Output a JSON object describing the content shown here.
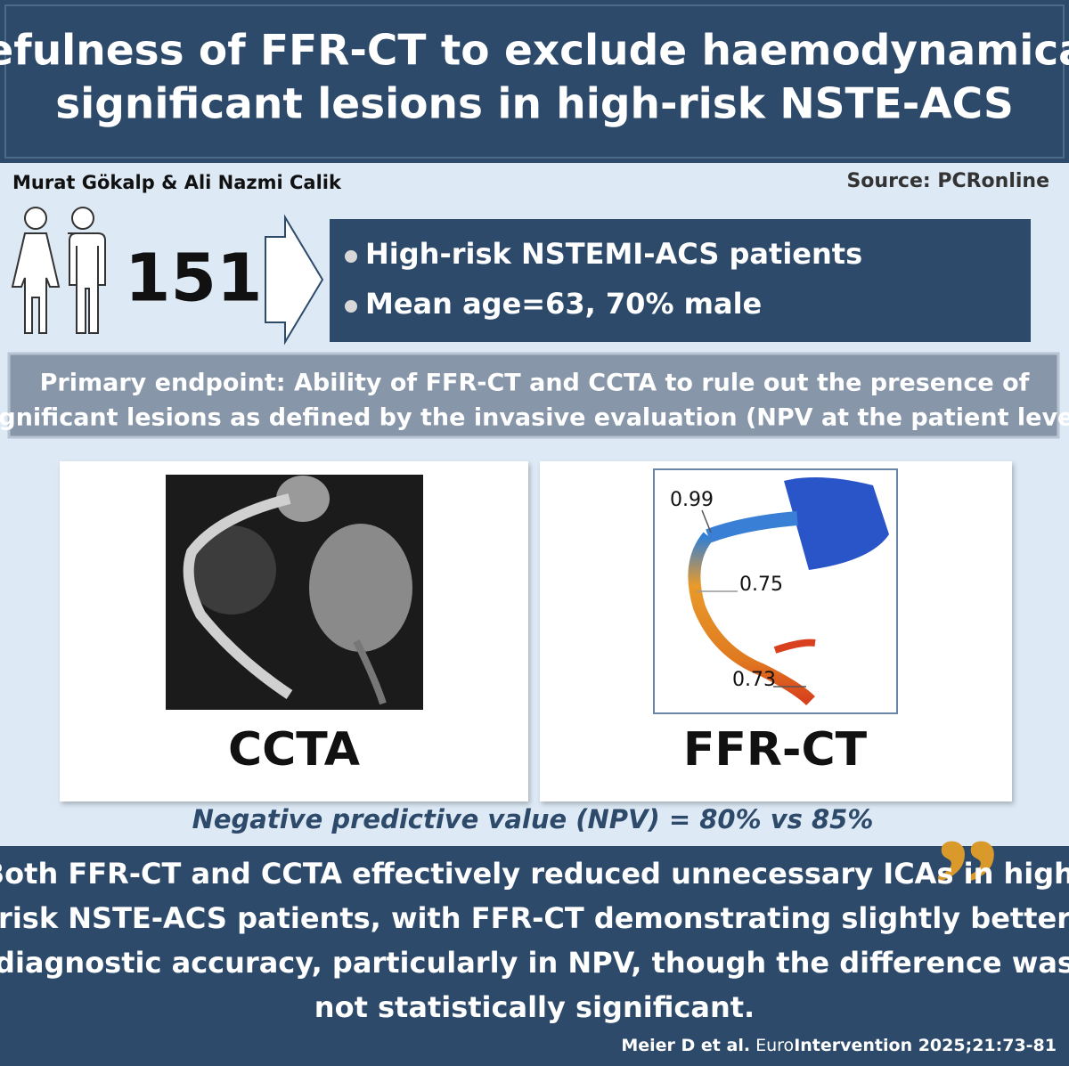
{
  "header": {
    "title_lines": [
      "Usefulness of FFR-CT to exclude haemodynamically",
      "significant lesions in high-risk NSTE-ACS"
    ]
  },
  "authors": "Murat Gökalp & Ali Nazmi Calik",
  "source": "Source: PCRonline",
  "population": {
    "count": 151,
    "bullets": [
      "High-risk NSTEMI-ACS patients",
      "Mean age=63, 70% male"
    ]
  },
  "endpoint_lines": [
    "Primary endpoint: Ability of FFR-CT and CCTA to rule out the presence of",
    "significant lesions as defined by the invasive evaluation (NPV at the patient level)"
  ],
  "panels": [
    {
      "label": "CCTA"
    },
    {
      "label": "FFR-CT",
      "annotations": [
        "0.99",
        "0.75",
        "0.73"
      ]
    }
  ],
  "npv": "Negative predictive value (NPV) = 80% vs  85%",
  "conclusion_lines": [
    "Both FFR-CT and CCTA effectively reduced unnecessary ICAs in high-",
    "risk NSTE-ACS patients, with FFR-CT demonstrating slightly better",
    "diagnostic accuracy, particularly in NPV, though the difference was",
    "not statistically significant."
  ],
  "citation": {
    "authors": "Meier D et al.",
    "journal_prefix": "Euro",
    "journal_rest": "Intervention 2025;21:73-81"
  }
}
